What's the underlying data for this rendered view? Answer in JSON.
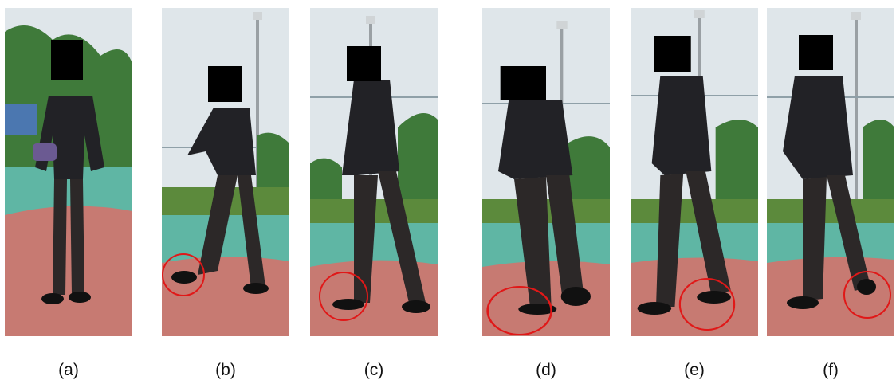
{
  "figure": {
    "panels": [
      {
        "caption": "(a)",
        "view": "frontal-standing",
        "foot_highlighted": false
      },
      {
        "caption": "(b)",
        "view": "side-walking",
        "foot_highlighted": true
      },
      {
        "caption": "(c)",
        "view": "side-walking",
        "foot_highlighted": true
      },
      {
        "caption": "(d)",
        "view": "side-walking",
        "foot_highlighted": true
      },
      {
        "caption": "(e)",
        "view": "side-walking",
        "foot_highlighted": true
      },
      {
        "caption": "(f)",
        "view": "side-walking",
        "foot_highlighted": true
      }
    ],
    "colors": {
      "sky": "#dfe6ea",
      "trees": "#3f7a3a",
      "grass": "#5c8a3c",
      "court_teal": "#5fb6a4",
      "court_red": "#c77a72",
      "clothing": "#222226",
      "face_mask": "#000000",
      "highlight_circle": "#e01818"
    }
  }
}
